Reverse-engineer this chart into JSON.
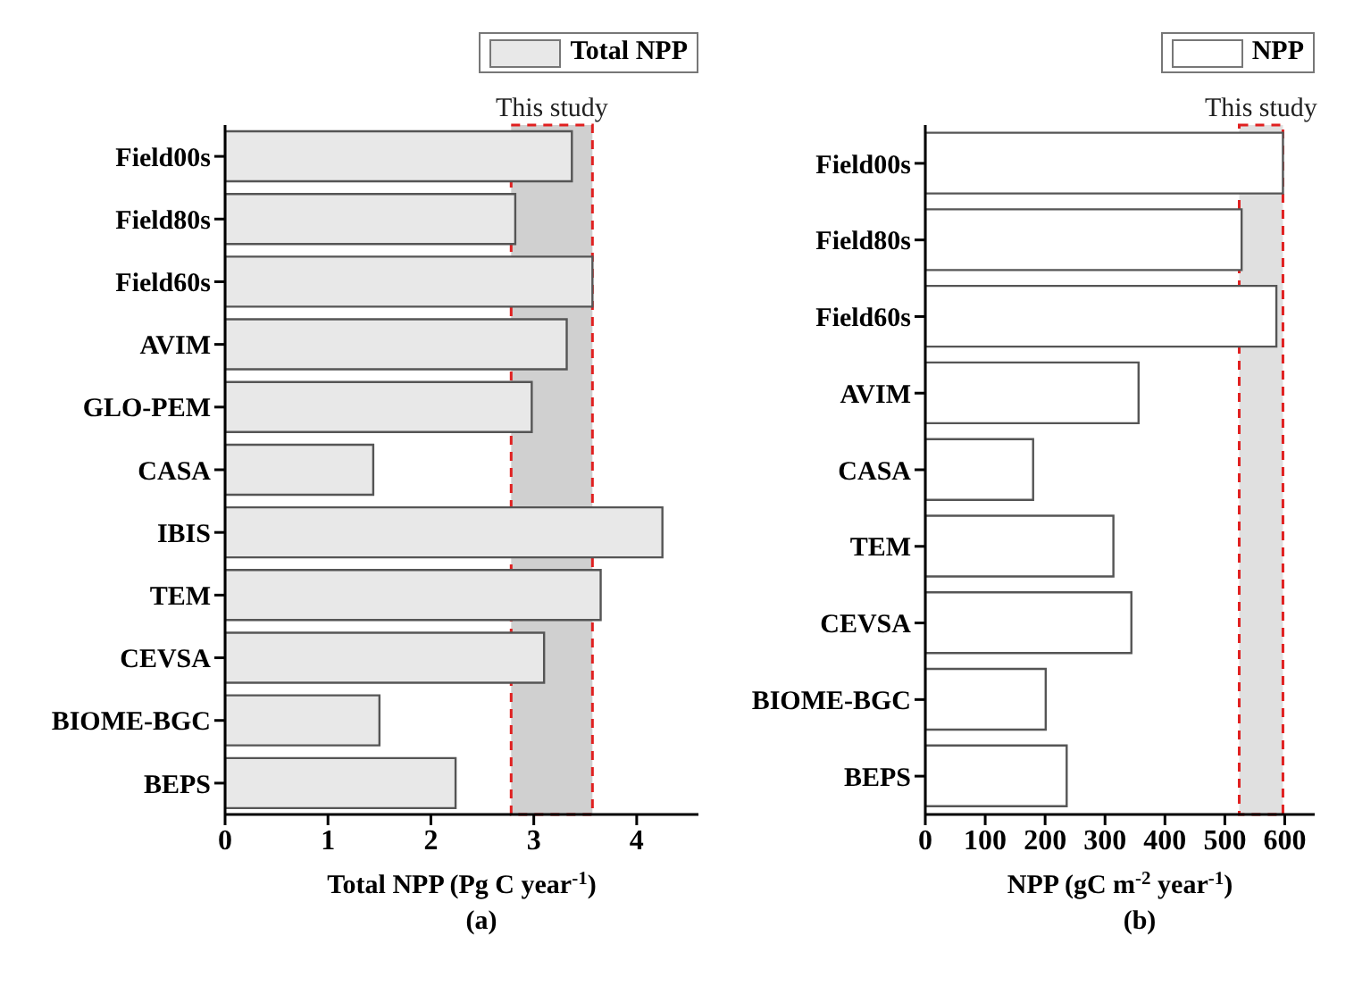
{
  "chart_data": [
    {
      "type": "bar",
      "orientation": "horizontal",
      "categories": [
        "Field00s",
        "Field80s",
        "Field60s",
        "AVIM",
        "GLO-PEM",
        "CASA",
        "IBIS",
        "TEM",
        "CEVSA",
        "BIOME-BGC",
        "BEPS"
      ],
      "series": [
        {
          "name": "Total NPP",
          "color": "#e8e8e8",
          "values": [
            3.37,
            2.82,
            3.57,
            3.32,
            2.98,
            1.44,
            4.25,
            3.65,
            3.1,
            1.5,
            2.24
          ]
        }
      ],
      "xlim": [
        0,
        4.6
      ],
      "xticks": [
        0,
        1,
        2,
        3,
        4
      ],
      "xlabel": "Total NPP (Pg C year$^{-1}$)",
      "legend": "top right",
      "bands": [
        {
          "axis": "x",
          "from": 2.78,
          "to": 3.57,
          "label": "This study",
          "color": "#d0d0d0"
        }
      ],
      "annotations": [
        "(a)"
      ]
    },
    {
      "type": "bar",
      "orientation": "horizontal",
      "categories": [
        "Field00s",
        "Field80s",
        "Field60s",
        "AVIM",
        "CASA",
        "TEM",
        "CEVSA",
        "BIOME-BGC",
        "BEPS"
      ],
      "series": [
        {
          "name": "NPP",
          "color": "#ffffff",
          "values": [
            597,
            528,
            586,
            356,
            180,
            314,
            344,
            201,
            236
          ]
        }
      ],
      "xlim": [
        0,
        650
      ],
      "xticks": [
        0,
        100,
        200,
        300,
        400,
        500,
        600
      ],
      "xlabel": "NPP (gC m$^{-2}$ year$^{-1}$)",
      "legend": "top right",
      "bands": [
        {
          "axis": "x",
          "from": 524,
          "to": 597,
          "label": "This study",
          "color": "#e0e0e0"
        }
      ],
      "annotations": [
        "(b)"
      ]
    }
  ]
}
